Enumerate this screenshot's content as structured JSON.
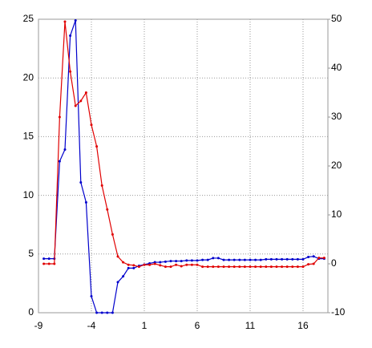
{
  "chart_data": {
    "type": "line",
    "x": [
      -8.5,
      -8,
      -7.5,
      -7,
      -6.5,
      -6,
      -5.5,
      -5,
      -4.5,
      -4,
      -3.5,
      -3,
      -2.5,
      -2,
      -1.5,
      -1,
      -0.5,
      0,
      0.5,
      1,
      1.5,
      2,
      2.5,
      3,
      3.5,
      4,
      4.5,
      5,
      5.5,
      6,
      6.5,
      7,
      7.5,
      8,
      8.5,
      9,
      9.5,
      10,
      10.5,
      11,
      11.5,
      12,
      12.5,
      13,
      13.5,
      14,
      14.5,
      15,
      15.5,
      16,
      16.5,
      17,
      17.5,
      18
    ],
    "series": [
      {
        "color": "#0000cc",
        "axis": "y",
        "values": [
          4.6,
          4.6,
          4.6,
          12.9,
          13.9,
          23.6,
          24.9,
          11.1,
          9.4,
          1.4,
          0,
          0,
          0,
          0,
          2.6,
          3.1,
          3.8,
          3.8,
          4.0,
          4.1,
          4.2,
          4.3,
          4.3,
          4.35,
          4.4,
          4.4,
          4.4,
          4.45,
          4.45,
          4.45,
          4.5,
          4.5,
          4.65,
          4.65,
          4.5,
          4.5,
          4.5,
          4.5,
          4.5,
          4.5,
          4.5,
          4.5,
          4.55,
          4.55,
          4.55,
          4.55,
          4.55,
          4.55,
          4.55,
          4.55,
          4.75,
          4.8,
          4.6,
          4.6
        ]
      },
      {
        "color": "#e00000",
        "axis": "y2",
        "values": [
          0,
          0,
          0,
          30,
          49.5,
          39.3,
          32.3,
          33.3,
          35,
          28.4,
          24,
          16,
          11.1,
          6,
          1.5,
          0.3,
          -0.2,
          -0.3,
          -0.6,
          -0.2,
          -0.2,
          0,
          -0.3,
          -0.6,
          -0.6,
          -0.2,
          -0.5,
          -0.2,
          -0.2,
          -0.2,
          -0.6,
          -0.6,
          -0.6,
          -0.6,
          -0.6,
          -0.6,
          -0.6,
          -0.6,
          -0.6,
          -0.6,
          -0.6,
          -0.6,
          -0.6,
          -0.6,
          -0.6,
          -0.6,
          -0.6,
          -0.6,
          -0.6,
          -0.6,
          -0.1,
          0,
          1.2,
          1.2
        ]
      }
    ],
    "xlim": [
      -9,
      18.35
    ],
    "xticks": [
      -9,
      -4,
      1,
      6,
      11,
      16
    ],
    "ylim": [
      0,
      25
    ],
    "yticks": [
      0,
      5,
      10,
      15,
      20,
      25
    ],
    "y2lim": [
      -10,
      50
    ],
    "y2ticks": [
      -10,
      0,
      10,
      20,
      30,
      40,
      50
    ],
    "grid": true
  }
}
